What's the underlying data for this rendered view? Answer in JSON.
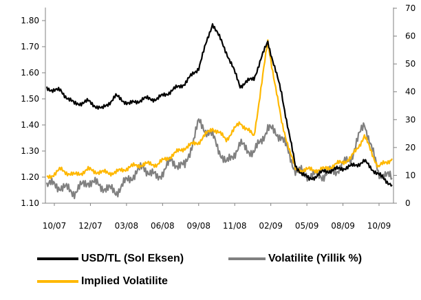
{
  "chart_data": {
    "type": "line",
    "title": "",
    "x_ticks": [
      "10/07",
      "12/07",
      "03/08",
      "06/08",
      "09/08",
      "11/08",
      "02/09",
      "05/09",
      "08/09",
      "10/09"
    ],
    "y_left": {
      "ticks": [
        "1.10",
        "1.20",
        "1.30",
        "1.40",
        "1.50",
        "1.60",
        "1.70",
        "1.80"
      ],
      "range": [
        1.1,
        1.85
      ]
    },
    "y_right": {
      "ticks": [
        "0",
        "10",
        "20",
        "30",
        "40",
        "50",
        "60",
        "70"
      ],
      "range": [
        0,
        70
      ]
    },
    "grid": false,
    "legend_placement": "bottom",
    "series": [
      {
        "name": "USD/TL (Sol Eksen)",
        "axis": "left",
        "color": "#000000",
        "x": [
          "10/07",
          "11/07",
          "12/07",
          "01/08",
          "02/08",
          "03/08",
          "04/08",
          "05/08",
          "06/08",
          "07/08",
          "08/08",
          "09/08",
          "10/08",
          "11/08",
          "12/08",
          "01/09",
          "02/09",
          "03/09",
          "04/09",
          "05/09",
          "06/09",
          "07/09",
          "08/09",
          "09/09",
          "10/09",
          "11/09"
        ],
        "values": [
          1.54,
          1.53,
          1.48,
          1.49,
          1.46,
          1.51,
          1.48,
          1.5,
          1.5,
          1.53,
          1.56,
          1.62,
          1.79,
          1.68,
          1.55,
          1.58,
          1.72,
          1.52,
          1.24,
          1.19,
          1.22,
          1.23,
          1.24,
          1.26,
          1.21,
          1.17
        ]
      },
      {
        "name": "Volatilite (Yillik %)",
        "axis": "right",
        "color": "#808080",
        "x": [
          "10/07",
          "11/07",
          "12/07",
          "01/08",
          "02/08",
          "03/08",
          "04/08",
          "05/08",
          "06/08",
          "07/08",
          "08/08",
          "09/08",
          "10/08",
          "11/08",
          "12/08",
          "01/09",
          "02/09",
          "03/09",
          "04/09",
          "05/09",
          "06/09",
          "07/09",
          "08/09",
          "09/09",
          "10/09",
          "11/09"
        ],
        "values": [
          7,
          6,
          4,
          8,
          6,
          4,
          9,
          13,
          9,
          15,
          13,
          29,
          24,
          14,
          21,
          18,
          27,
          24,
          12,
          10,
          10,
          12,
          16,
          29,
          11,
          9
        ]
      },
      {
        "name": "Implied Volatilite",
        "axis": "right",
        "color": "#FFB800",
        "x": [
          "10/07",
          "11/07",
          "12/07",
          "01/08",
          "02/08",
          "03/08",
          "04/08",
          "05/08",
          "06/08",
          "07/08",
          "08/08",
          "09/08",
          "10/08",
          "11/08",
          "12/08",
          "01/09",
          "02/09",
          "03/09",
          "04/09",
          "05/09",
          "06/09",
          "07/09",
          "08/09",
          "09/09",
          "10/09",
          "11/09"
        ],
        "values": [
          9,
          12,
          10,
          12,
          11,
          11,
          13,
          14,
          14,
          17,
          20,
          22,
          27,
          23,
          29,
          24,
          58,
          29,
          12,
          12,
          12,
          14,
          16,
          24,
          13,
          16
        ]
      }
    ]
  },
  "legend": {
    "items": [
      {
        "label": "USD/TL (Sol Eksen)",
        "color": "#000000"
      },
      {
        "label": "Volatilite (Yillik %)",
        "color": "#808080"
      },
      {
        "label": "Implied Volatilite",
        "color": "#FFB800"
      }
    ]
  }
}
